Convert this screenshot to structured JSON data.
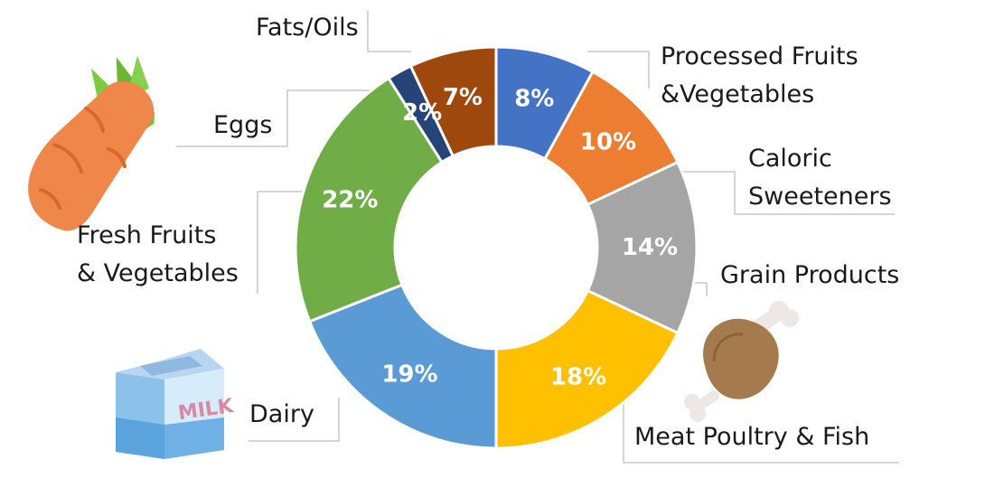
{
  "chart_data": {
    "type": "pie",
    "donut": true,
    "series": [
      {
        "label": "Processed Fruits &Vegetables",
        "value": 8,
        "display": "8%",
        "color": "#4472c4"
      },
      {
        "label": "Caloric Sweeteners",
        "value": 10,
        "display": "10%",
        "color": "#ed7d31"
      },
      {
        "label": "Grain Products",
        "value": 14,
        "display": "14%",
        "color": "#a5a5a5"
      },
      {
        "label": "Meat Poultry & Fish",
        "value": 18,
        "display": "18%",
        "color": "#ffc000"
      },
      {
        "label": "Dairy",
        "value": 19,
        "display": "19%",
        "color": "#5b9bd5"
      },
      {
        "label": "Fresh Fruits & Vegetables",
        "value": 22,
        "display": "22%",
        "color": "#70ad47"
      },
      {
        "label": "Eggs",
        "value": 2,
        "display": "2%",
        "color": "#264478"
      },
      {
        "label": "Fats/Oils",
        "value": 7,
        "display": "7%",
        "color": "#9e480e"
      }
    ],
    "legend": "outside-with-leader-lines"
  },
  "labels": {
    "processed_line1": "Processed Fruits",
    "processed_line2": "&Vegetables",
    "caloric_line1": "Caloric",
    "caloric_line2": "Sweeteners",
    "grain": "Grain Products",
    "meat": "Meat Poultry & Fish",
    "dairy": "Dairy",
    "fresh_line1": "Fresh Fruits",
    "fresh_line2": "& Vegetables",
    "eggs": "Eggs",
    "fats": "Fats/Oils"
  },
  "icons": {
    "carrot": "carrot-icon",
    "milk": "milk-carton-icon",
    "meat": "drumstick-icon",
    "milk_text": "MILK"
  }
}
